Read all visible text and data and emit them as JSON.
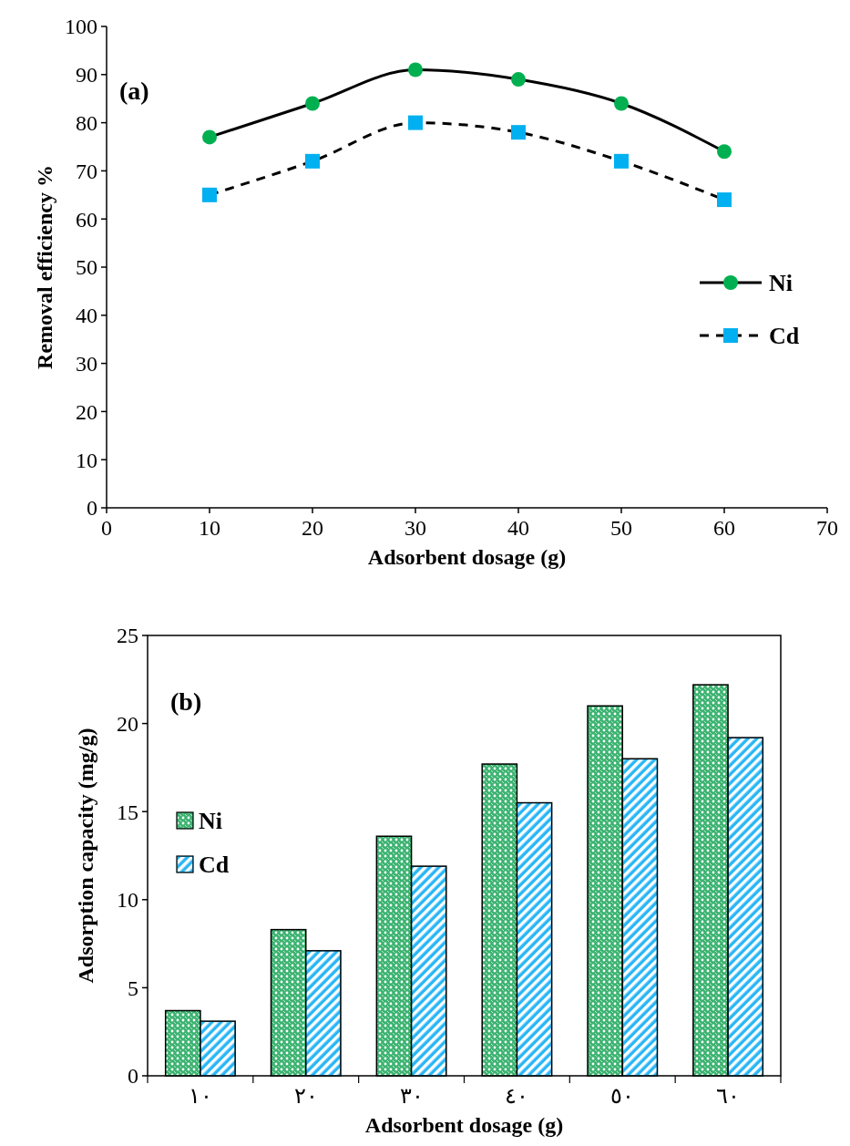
{
  "chart_data": [
    {
      "type": "line",
      "annotations": [
        "(a)"
      ],
      "xlabel": "Adsorbent dosage (g)",
      "ylabel": "Removal efficiency %",
      "x": [
        10,
        20,
        30,
        40,
        50,
        60
      ],
      "xlim": [
        0,
        70
      ],
      "xticks": [
        0,
        10,
        20,
        30,
        40,
        50,
        60,
        70
      ],
      "ylim": [
        0,
        100
      ],
      "yticks": [
        0,
        10,
        20,
        30,
        40,
        50,
        60,
        70,
        80,
        90,
        100
      ],
      "legend": "right",
      "series": [
        {
          "name": "Ni",
          "color": "#00b050",
          "marker": "circle",
          "line_style": "solid",
          "values": [
            77,
            84,
            91,
            89,
            84,
            74
          ]
        },
        {
          "name": "Cd",
          "color": "#00b0f0",
          "marker": "square",
          "line_style": "dashed",
          "values": [
            65,
            72,
            80,
            78,
            72,
            64
          ]
        }
      ]
    },
    {
      "type": "bar",
      "annotations": [
        "(b)"
      ],
      "xlabel": "Adsorbent dosage (g)",
      "ylabel": "Adsorption capacity (mg/g)",
      "categories": [
        "١٠",
        "٢٠",
        "٣٠",
        "٤٠",
        "٥٠",
        "٦٠"
      ],
      "ylim": [
        0,
        25
      ],
      "yticks": [
        0,
        5,
        10,
        15,
        20,
        25
      ],
      "legend": "left",
      "series": [
        {
          "name": "Ni",
          "color": "#3cb371",
          "values": [
            3.7,
            8.3,
            13.6,
            17.7,
            21.0,
            22.2
          ]
        },
        {
          "name": "Cd",
          "color": "#29b6f6",
          "values": [
            3.1,
            7.1,
            11.9,
            15.5,
            18.0,
            19.2
          ]
        }
      ]
    }
  ]
}
